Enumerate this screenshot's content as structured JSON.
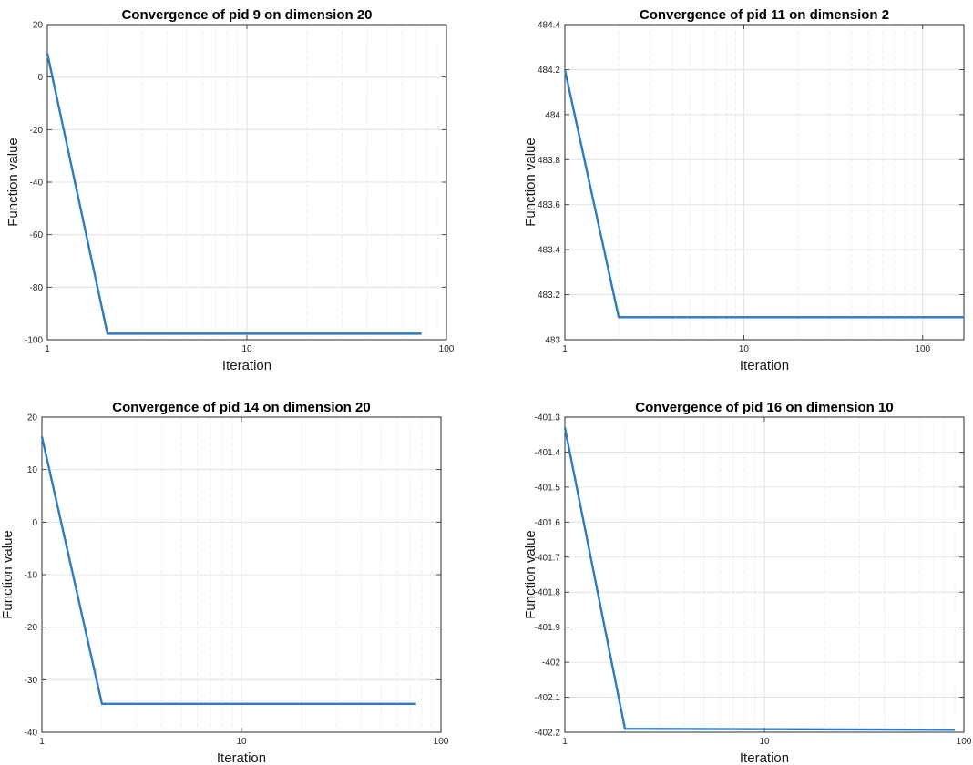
{
  "chart_data": [
    {
      "type": "line",
      "title": "Convergence of pid 9 on dimension 20",
      "xlabel": "Iteration",
      "ylabel": "Function value",
      "xscale": "log",
      "xlim": [
        1,
        100
      ],
      "ylim": [
        -100,
        20
      ],
      "xticks": [
        1,
        10,
        100
      ],
      "xtick_labels": [
        "1",
        "10",
        "100"
      ],
      "yticks": [
        -100,
        -80,
        -60,
        -40,
        -20,
        0,
        20
      ],
      "ytick_labels": [
        "-100",
        "-80",
        "-60",
        "-40",
        "-20",
        "0",
        "20"
      ],
      "grid": true,
      "series": [
        {
          "x": [
            1,
            2,
            75
          ],
          "y": [
            9,
            -97.7,
            -97.7
          ],
          "color": "#2e7bc4"
        }
      ]
    },
    {
      "type": "line",
      "title": "Convergence of pid 11 on dimension 2",
      "xlabel": "Iteration",
      "ylabel": "Function value",
      "xscale": "log",
      "xlim": [
        1,
        170
      ],
      "ylim": [
        483,
        484.4
      ],
      "xticks": [
        1,
        10,
        100
      ],
      "xtick_labels": [
        "1",
        "10",
        "100"
      ],
      "yticks": [
        483,
        483.2,
        483.4,
        483.6,
        483.8,
        484,
        484.2,
        484.4
      ],
      "ytick_labels": [
        "483",
        "483.2",
        "483.4",
        "483.6",
        "483.8",
        "484",
        "484.2",
        "484.4"
      ],
      "grid": true,
      "series": [
        {
          "x": [
            1,
            2,
            170
          ],
          "y": [
            484.2,
            483.1,
            483.1
          ],
          "color": "#2e7bc4"
        }
      ]
    },
    {
      "type": "line",
      "title": "Convergence of pid 14 on dimension 20",
      "xlabel": "Iteration",
      "ylabel": "Function value",
      "xscale": "log",
      "xlim": [
        1,
        100
      ],
      "ylim": [
        -40,
        20
      ],
      "xticks": [
        1,
        10,
        100
      ],
      "xtick_labels": [
        "1",
        "10",
        "100"
      ],
      "yticks": [
        -40,
        -30,
        -20,
        -10,
        0,
        10,
        20
      ],
      "ytick_labels": [
        "-40",
        "-30",
        "-20",
        "-10",
        "0",
        "10",
        "20"
      ],
      "grid": true,
      "series": [
        {
          "x": [
            1,
            2,
            75
          ],
          "y": [
            16.3,
            -34.6,
            -34.6
          ],
          "color": "#2e7bc4"
        }
      ]
    },
    {
      "type": "line",
      "title": "Convergence of pid 16 on dimension 10",
      "xlabel": "Iteration",
      "ylabel": "Function value",
      "xscale": "log",
      "xlim": [
        1,
        100
      ],
      "ylim": [
        -402.2,
        -401.3
      ],
      "xticks": [
        1,
        10,
        100
      ],
      "xtick_labels": [
        "1",
        "10",
        "100"
      ],
      "yticks": [
        -402.2,
        -402.1,
        -402,
        -401.9,
        -401.8,
        -401.7,
        -401.6,
        -401.5,
        -401.4,
        -401.3
      ],
      "ytick_labels": [
        "-402.2",
        "-402.1",
        "-402",
        "-401.9",
        "-401.8",
        "-401.7",
        "-401.6",
        "-401.5",
        "-401.4",
        "-401.3"
      ],
      "grid": true,
      "series": [
        {
          "x": [
            1,
            2,
            90
          ],
          "y": [
            -401.33,
            -402.19,
            -402.193
          ],
          "color": "#2e7bc4"
        }
      ]
    }
  ]
}
